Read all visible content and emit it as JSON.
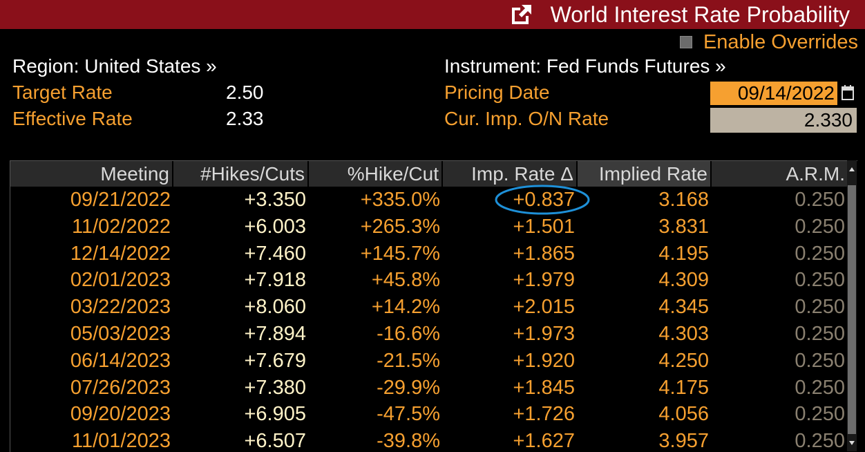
{
  "title": "World Interest Rate Probability",
  "overrides_label": "Enable Overrides",
  "region_label": "Region: United States »",
  "instrument_label": "Instrument: Fed Funds Futures »",
  "target_rate_label": "Target Rate",
  "target_rate_value": "2.50",
  "effective_rate_label": "Effective Rate",
  "effective_rate_value": "2.33",
  "pricing_date_label": "Pricing Date",
  "pricing_date_value": "09/14/2022",
  "on_rate_label": "Cur. Imp. O/N Rate",
  "on_rate_value": "2.330",
  "columns": [
    "Meeting",
    "#Hikes/Cuts",
    "%Hike/Cut",
    "Imp. Rate Δ",
    "Implied Rate",
    "A.R.M."
  ],
  "rows": [
    [
      "09/21/2022",
      "+3.350",
      "+335.0%",
      "+0.837",
      "3.168",
      "0.250"
    ],
    [
      "11/02/2022",
      "+6.003",
      "+265.3%",
      "+1.501",
      "3.831",
      "0.250"
    ],
    [
      "12/14/2022",
      "+7.460",
      "+145.7%",
      "+1.865",
      "4.195",
      "0.250"
    ],
    [
      "02/01/2023",
      "+7.918",
      "+45.8%",
      "+1.979",
      "4.309",
      "0.250"
    ],
    [
      "03/22/2023",
      "+8.060",
      "+14.2%",
      "+2.015",
      "4.345",
      "0.250"
    ],
    [
      "05/03/2023",
      "+7.894",
      "-16.6%",
      "+1.973",
      "4.303",
      "0.250"
    ],
    [
      "06/14/2023",
      "+7.679",
      "-21.5%",
      "+1.920",
      "4.250",
      "0.250"
    ],
    [
      "07/26/2023",
      "+7.380",
      "-29.9%",
      "+1.845",
      "4.175",
      "0.250"
    ],
    [
      "09/20/2023",
      "+6.905",
      "-47.5%",
      "+1.726",
      "4.056",
      "0.250"
    ],
    [
      "11/01/2023",
      "+6.507",
      "-39.8%",
      "+1.627",
      "3.957",
      "0.250"
    ]
  ],
  "colors": {
    "titlebar": "#8a101a",
    "amber": "#f6a030",
    "highlight_ellipse": "#1e90d8"
  },
  "icons": [
    "external-link-icon",
    "calendar-icon",
    "scroll-down-arrow-icon"
  ]
}
